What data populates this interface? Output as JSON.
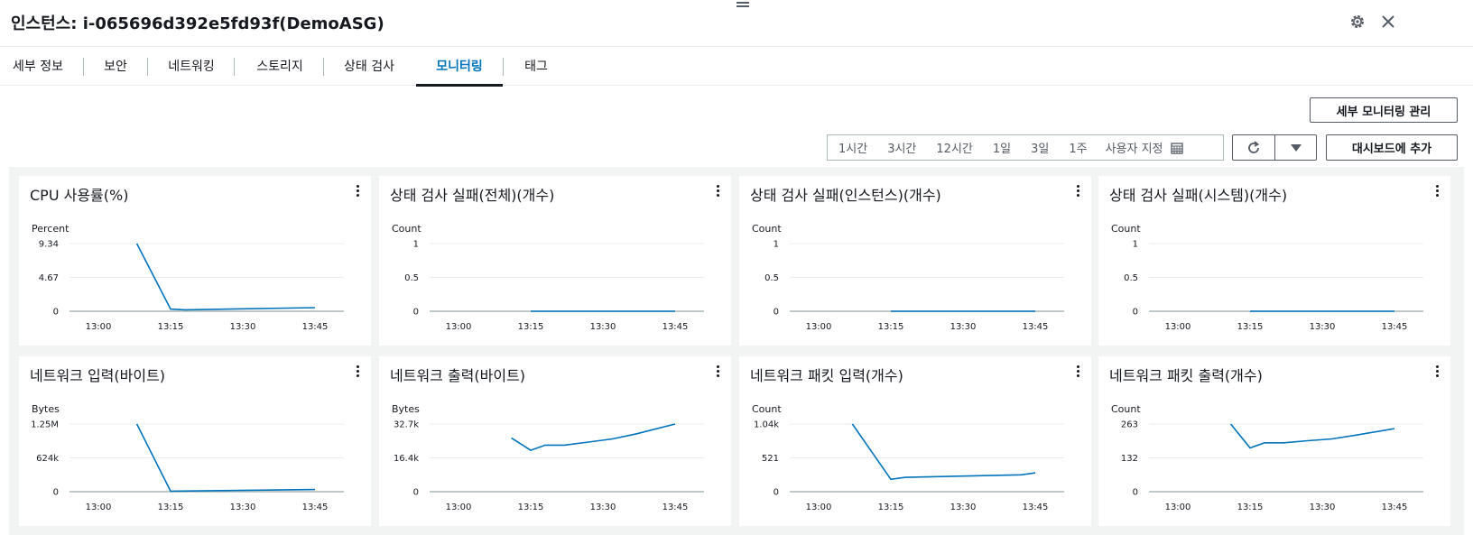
{
  "header": {
    "title": "인스턴스: i-065696d392e5fd93f(DemoASG)",
    "settings_icon": "gear-icon",
    "close_icon": "close-icon"
  },
  "tabs": [
    {
      "label": "세부 정보",
      "active": false
    },
    {
      "label": "보안",
      "active": false
    },
    {
      "label": "네트워킹",
      "active": false
    },
    {
      "label": "스토리지",
      "active": false
    },
    {
      "label": "상태 검사",
      "active": false
    },
    {
      "label": "모니터링",
      "active": true
    },
    {
      "label": "태그",
      "active": false
    }
  ],
  "toolbar": {
    "manage_detailed_monitoring": "세부 모니터링 관리",
    "time_ranges": [
      "1시간",
      "3시간",
      "12시간",
      "1일",
      "3일",
      "1주",
      "사용자 지정"
    ],
    "add_to_dashboard": "대시보드에 추가",
    "accent_color": "#0073bb"
  },
  "x_ticks": [
    "13:00",
    "13:15",
    "13:30",
    "13:45"
  ],
  "charts": [
    {
      "title": "CPU 사용률(%)",
      "unit": "Percent",
      "y_ticks": [
        "9.34",
        "4.67",
        "0"
      ],
      "ylim": [
        0,
        9.34
      ],
      "points": [
        [
          13.133,
          9.34
        ],
        [
          13.25,
          0.3
        ],
        [
          13.3,
          0.2
        ],
        [
          13.75,
          0.5
        ]
      ]
    },
    {
      "title": "상태 검사 실패(전체)(개수)",
      "unit": "Count",
      "y_ticks": [
        "1",
        "0.5",
        "0"
      ],
      "ylim": [
        0,
        1
      ],
      "points": [
        [
          13.25,
          0
        ],
        [
          13.75,
          0
        ]
      ]
    },
    {
      "title": "상태 검사 실패(인스턴스)(개수)",
      "unit": "Count",
      "y_ticks": [
        "1",
        "0.5",
        "0"
      ],
      "ylim": [
        0,
        1
      ],
      "points": [
        [
          13.25,
          0
        ],
        [
          13.75,
          0
        ]
      ]
    },
    {
      "title": "상태 검사 실패(시스템)(개수)",
      "unit": "Count",
      "y_ticks": [
        "1",
        "0.5",
        "0"
      ],
      "ylim": [
        0,
        1
      ],
      "points": [
        [
          13.25,
          0
        ],
        [
          13.75,
          0
        ]
      ]
    },
    {
      "title": "네트워크 입력(바이트)",
      "unit": "Bytes",
      "y_ticks": [
        "1.25M",
        "624k",
        "0"
      ],
      "ylim": [
        0,
        1250000
      ],
      "points": [
        [
          13.133,
          1250000
        ],
        [
          13.25,
          10000
        ],
        [
          13.75,
          40000
        ]
      ]
    },
    {
      "title": "네트워크 출력(바이트)",
      "unit": "Bytes",
      "y_ticks": [
        "32.7k",
        "16.4k",
        "0"
      ],
      "ylim": [
        0,
        32700
      ],
      "points": [
        [
          13.183,
          26000
        ],
        [
          13.25,
          20000
        ],
        [
          13.3,
          22500
        ],
        [
          13.367,
          22500
        ],
        [
          13.45,
          24000
        ],
        [
          13.533,
          25500
        ],
        [
          13.617,
          28000
        ],
        [
          13.75,
          32700
        ]
      ]
    },
    {
      "title": "네트워크 패킷 입력(개수)",
      "unit": "Count",
      "y_ticks": [
        "1.04k",
        "521",
        "0"
      ],
      "ylim": [
        0,
        1040
      ],
      "points": [
        [
          13.117,
          1040
        ],
        [
          13.25,
          190
        ],
        [
          13.3,
          220
        ],
        [
          13.5,
          240
        ],
        [
          13.7,
          260
        ],
        [
          13.75,
          290
        ]
      ]
    },
    {
      "title": "네트워크 패킷 출력(개수)",
      "unit": "Count",
      "y_ticks": [
        "263",
        "132",
        "0"
      ],
      "ylim": [
        0,
        263
      ],
      "points": [
        [
          13.183,
          263
        ],
        [
          13.25,
          170
        ],
        [
          13.3,
          190
        ],
        [
          13.367,
          190
        ],
        [
          13.45,
          198
        ],
        [
          13.533,
          205
        ],
        [
          13.617,
          220
        ],
        [
          13.75,
          245
        ]
      ]
    }
  ]
}
